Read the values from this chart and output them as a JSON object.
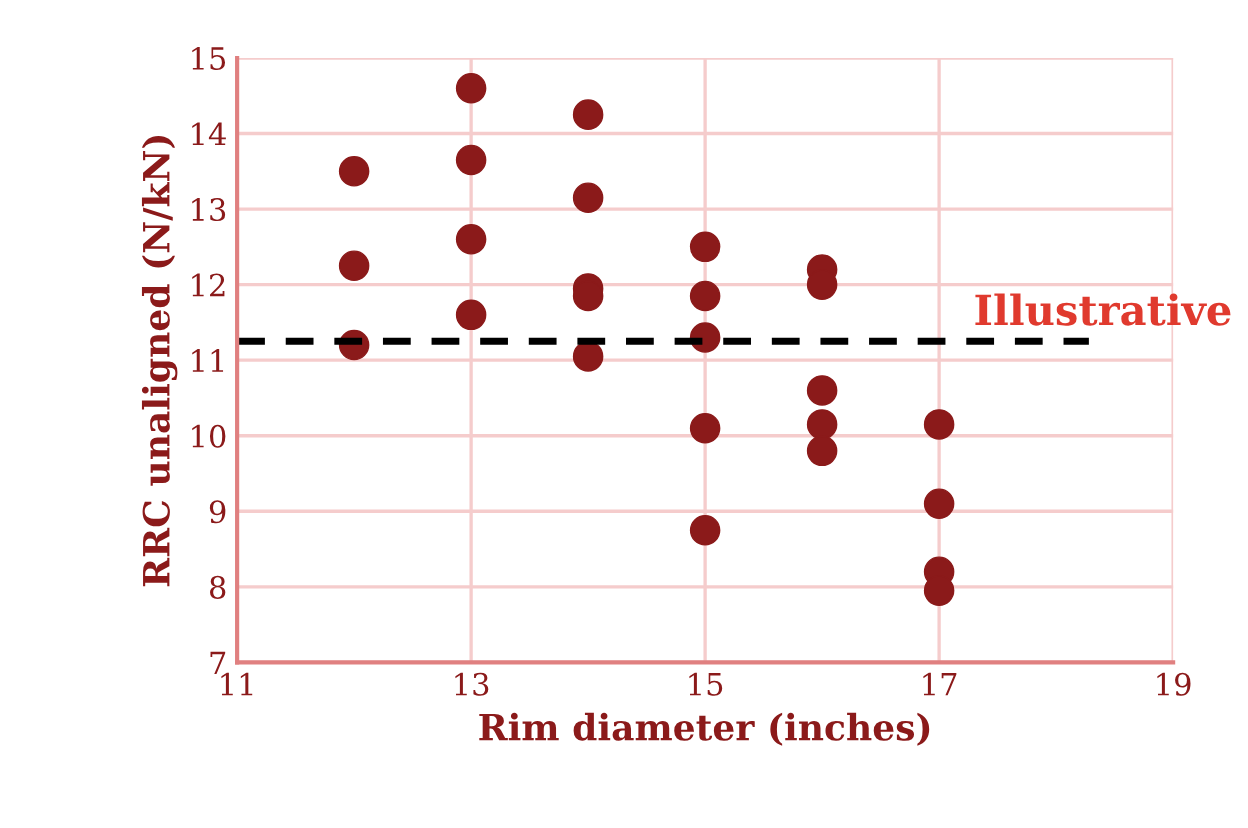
{
  "chart_data": {
    "type": "scatter",
    "xlabel": "Rim diameter (inches)",
    "ylabel": "RRC unaligned (N/kN)",
    "x": [
      12,
      12,
      12,
      13,
      13,
      13,
      13,
      14,
      14,
      14,
      14,
      14,
      15,
      15,
      15,
      15,
      15,
      16,
      16,
      16,
      16,
      16,
      17,
      17,
      17,
      17
    ],
    "series": [
      {
        "color": "#8b1a1a",
        "values": [
          13.5,
          12.25,
          11.2,
          14.6,
          13.65,
          12.6,
          11.6,
          14.25,
          13.15,
          11.95,
          11.85,
          11.05,
          12.5,
          11.85,
          11.3,
          10.1,
          8.75,
          12.2,
          12.0,
          10.6,
          10.15,
          9.8,
          10.15,
          9.1,
          8.2,
          7.95
        ]
      }
    ],
    "xlim": [
      11,
      19
    ],
    "xticks": [
      11,
      13,
      15,
      17,
      19
    ],
    "ylim": [
      7,
      15
    ],
    "yticks": [
      7,
      8,
      9,
      10,
      11,
      12,
      13,
      14,
      15
    ],
    "ref_lines": [
      {
        "axis": "y",
        "value": 11.25,
        "label": "Illustrative",
        "color": "#000000",
        "line_style": "dashed"
      }
    ],
    "grid": true,
    "marker": "circle"
  }
}
